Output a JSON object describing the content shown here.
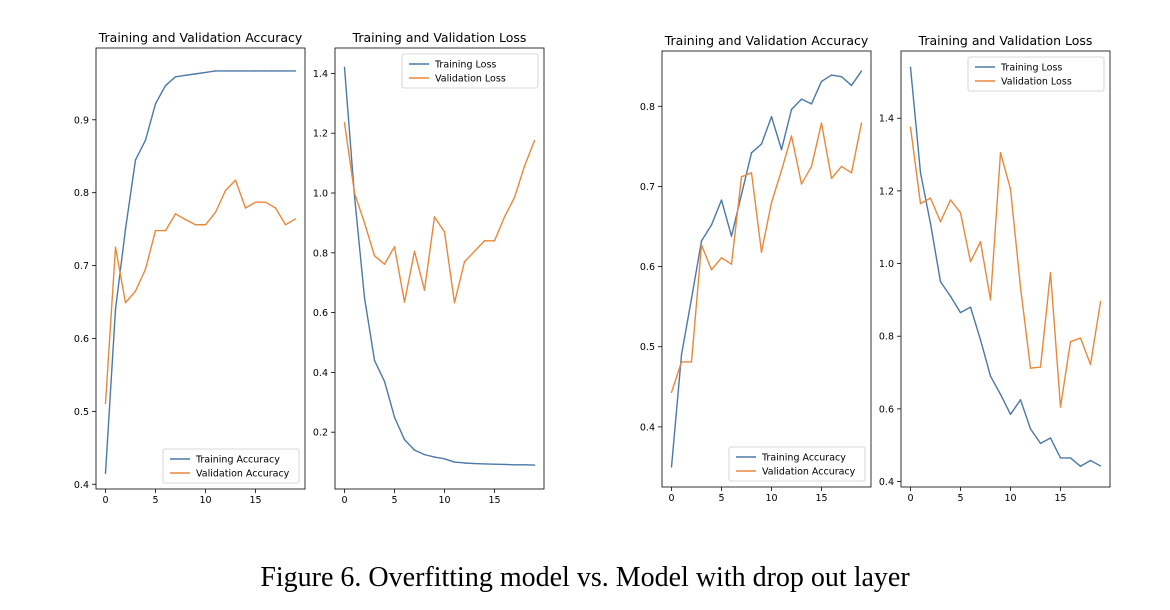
{
  "caption": "Figure 6. Overfitting model vs. Model with drop out layer",
  "colors": {
    "training": "#4c78a8",
    "validation": "#e8883b",
    "axis": "#000000"
  },
  "chart_data": [
    {
      "type": "line",
      "title": "Training and Validation Accuracy",
      "xlabel": "",
      "ylabel": "",
      "xlim": [
        -0.95,
        19.95
      ],
      "ylim": [
        0.3935,
        0.9985
      ],
      "xticks": [
        0,
        5,
        10,
        15
      ],
      "yticks": [
        0.4,
        0.5,
        0.6,
        0.7,
        0.8,
        0.9
      ],
      "legend_loc": "lower right",
      "x": [
        0,
        1,
        2,
        3,
        4,
        5,
        6,
        7,
        8,
        9,
        10,
        11,
        12,
        13,
        14,
        15,
        16,
        17,
        18,
        19
      ],
      "series": [
        {
          "name": "Training Accuracy",
          "color": "training",
          "values": [
            0.415,
            0.64,
            0.75,
            0.845,
            0.872,
            0.922,
            0.947,
            0.959,
            0.961,
            0.963,
            0.965,
            0.967,
            0.967,
            0.967,
            0.967,
            0.967,
            0.967,
            0.967,
            0.967,
            0.967
          ]
        },
        {
          "name": "Validation Accuracy",
          "color": "validation",
          "values": [
            0.511,
            0.725,
            0.649,
            0.665,
            0.695,
            0.748,
            0.748,
            0.771,
            0.763,
            0.756,
            0.756,
            0.773,
            0.803,
            0.817,
            0.779,
            0.787,
            0.787,
            0.779,
            0.756,
            0.764
          ]
        }
      ]
    },
    {
      "type": "line",
      "title": "Training and Validation Loss",
      "xlabel": "",
      "ylabel": "",
      "xlim": [
        -0.95,
        19.95
      ],
      "ylim": [
        0.01,
        1.485
      ],
      "xticks": [
        0,
        5,
        10,
        15
      ],
      "yticks": [
        0.2,
        0.4,
        0.6,
        0.8,
        1.0,
        1.2,
        1.4
      ],
      "legend_loc": "upper right",
      "x": [
        0,
        1,
        2,
        3,
        4,
        5,
        6,
        7,
        8,
        9,
        10,
        11,
        12,
        13,
        14,
        15,
        16,
        17,
        18,
        19
      ],
      "series": [
        {
          "name": "Training Loss",
          "color": "training",
          "values": [
            1.42,
            0.99,
            0.65,
            0.44,
            0.37,
            0.25,
            0.175,
            0.14,
            0.125,
            0.117,
            0.111,
            0.1,
            0.097,
            0.095,
            0.094,
            0.093,
            0.092,
            0.091,
            0.091,
            0.09
          ]
        },
        {
          "name": "Validation Loss",
          "color": "validation",
          "values": [
            1.235,
            1.0,
            0.9,
            0.79,
            0.762,
            0.82,
            0.635,
            0.805,
            0.675,
            0.92,
            0.87,
            0.633,
            0.77,
            0.805,
            0.84,
            0.84,
            0.92,
            0.985,
            1.09,
            1.175
          ]
        }
      ]
    },
    {
      "type": "line",
      "title": "Training and Validation Accuracy",
      "xlabel": "",
      "ylabel": "",
      "xlim": [
        -0.95,
        19.95
      ],
      "ylim": [
        0.325,
        0.869
      ],
      "xticks": [
        0,
        5,
        10,
        15
      ],
      "yticks": [
        0.4,
        0.5,
        0.6,
        0.7,
        0.8
      ],
      "legend_loc": "lower right",
      "x": [
        0,
        1,
        2,
        3,
        4,
        5,
        6,
        7,
        8,
        9,
        10,
        11,
        12,
        13,
        14,
        15,
        16,
        17,
        18,
        19
      ],
      "series": [
        {
          "name": "Training Accuracy",
          "color": "training",
          "values": [
            0.35,
            0.49,
            0.56,
            0.632,
            0.652,
            0.683,
            0.638,
            0.69,
            0.742,
            0.753,
            0.787,
            0.746,
            0.796,
            0.809,
            0.803,
            0.831,
            0.839,
            0.837,
            0.826,
            0.844
          ]
        },
        {
          "name": "Validation Accuracy",
          "color": "validation",
          "values": [
            0.443,
            0.481,
            0.481,
            0.627,
            0.596,
            0.611,
            0.603,
            0.712,
            0.717,
            0.618,
            0.68,
            0.72,
            0.763,
            0.703,
            0.725,
            0.779,
            0.71,
            0.725,
            0.717,
            0.779
          ]
        }
      ]
    },
    {
      "type": "line",
      "title": "Training and Validation Loss",
      "xlabel": "",
      "ylabel": "",
      "xlim": [
        -0.95,
        19.95
      ],
      "ylim": [
        0.385,
        1.585
      ],
      "xticks": [
        0,
        5,
        10,
        15
      ],
      "yticks": [
        0.4,
        0.6,
        0.8,
        1.0,
        1.2,
        1.4
      ],
      "legend_loc": "upper right",
      "x": [
        0,
        1,
        2,
        3,
        4,
        5,
        6,
        7,
        8,
        9,
        10,
        11,
        12,
        13,
        14,
        15,
        16,
        17,
        18,
        19
      ],
      "series": [
        {
          "name": "Training Loss",
          "color": "training",
          "values": [
            1.54,
            1.25,
            1.11,
            0.95,
            0.91,
            0.865,
            0.88,
            0.79,
            0.69,
            0.64,
            0.585,
            0.625,
            0.545,
            0.505,
            0.52,
            0.465,
            0.465,
            0.442,
            0.458,
            0.443
          ]
        },
        {
          "name": "Validation Loss",
          "color": "validation",
          "values": [
            1.375,
            1.165,
            1.18,
            1.115,
            1.175,
            1.14,
            1.005,
            1.06,
            0.9,
            1.305,
            1.205,
            0.935,
            0.712,
            0.715,
            0.975,
            0.605,
            0.785,
            0.795,
            0.722,
            0.895
          ]
        }
      ]
    }
  ]
}
